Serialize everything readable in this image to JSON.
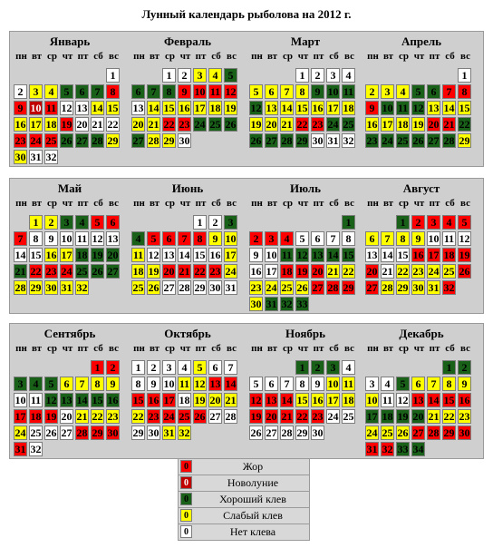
{
  "title": "Лунный календарь рыболова на 2012 г.",
  "weekdays": [
    "пн",
    "вт",
    "ср",
    "чт",
    "пт",
    "сб",
    "вс"
  ],
  "colors": {
    "n": "#ffffff",
    "y": "#ffff00",
    "g": "#196119",
    "r": "#ff0000",
    "d": "#c00000"
  },
  "legend": [
    {
      "status": "r",
      "value": "0",
      "label": "Жор"
    },
    {
      "status": "d",
      "value": "0",
      "label": "Новолуние"
    },
    {
      "status": "g",
      "value": "0",
      "label": "Хороший клев"
    },
    {
      "status": "y",
      "value": "0",
      "label": "Слабый клев"
    },
    {
      "status": "n",
      "value": "0",
      "label": "Нет клева"
    }
  ],
  "months": [
    {
      "name": "Январь",
      "start": 6,
      "statuses": "nnyygggrrdrnnyyyyyrnnnrrrgggyynn"
    },
    {
      "name": "Февраль",
      "start": 2,
      "statuses": "nnyyggggrrrrnyyyyyyyyrrggggyyn"
    },
    {
      "name": "Март",
      "start": 3,
      "statuses": "nnnnyyyyggggyyyyyyyyyrrggggggnnn"
    },
    {
      "name": "Апрель",
      "start": 6,
      "statuses": "nyyyggrrrgggyyyyyyyrrgggggggy"
    },
    {
      "name": "Май",
      "start": 1,
      "statuses": "yyggrrrnnnnnnnnyyggggrrrgggyyyyy"
    },
    {
      "name": "Июнь",
      "start": 4,
      "statuses": "nnggrrrryyynnnnnyyyrrrryyynnnnn"
    },
    {
      "name": "Июль",
      "start": 6,
      "statuses": "grrrnnnnnngggggnnrrryyyyyyrrryggg"
    },
    {
      "name": "Август",
      "start": 2,
      "statuses": "grrrryyyynnnnnnrrrrrnyyyyrryyyyr"
    },
    {
      "name": "Сентябрь",
      "start": 5,
      "statuses": "rrgggyyyynngggggrrrnyyyynnnrrrrn"
    },
    {
      "name": "Октябрь",
      "start": 0,
      "statuses": "nnnnynnnnnyyrrrrrnyyyyrrrrnnnnyy"
    },
    {
      "name": "Ноябрь",
      "start": 3,
      "statuses": "gggnnnnnnyyrrryyyyrrrrrnnnnnnn"
    },
    {
      "name": "Декабрь",
      "start": 5,
      "statuses": "ggnngyyyyynnrrrrggggyyyyyyrrrrrrgg"
    }
  ]
}
